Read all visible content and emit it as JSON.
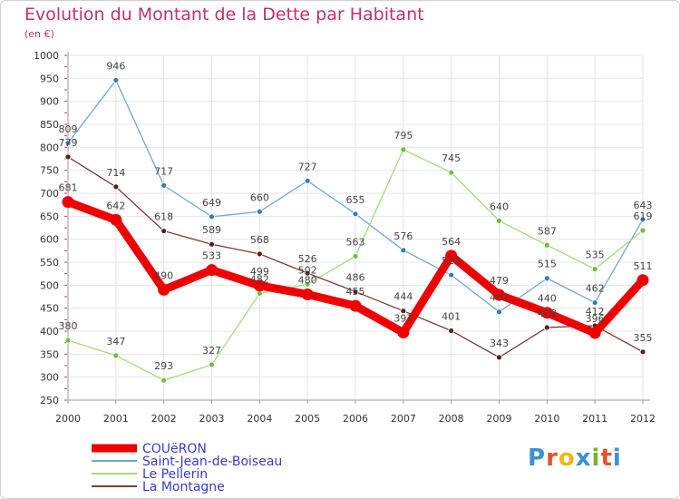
{
  "title": "Evolution du Montant de la Dette par Habitant",
  "subtitle": "(en €)",
  "logo": {
    "text": "Proxiti",
    "colors": [
      "#3b8fd6",
      "#e8502a",
      "#f0b419",
      "#3b8fd6",
      "#79b42a",
      "#e8502a",
      "#3b8fd6"
    ]
  },
  "chart_data": {
    "type": "line",
    "categories": [
      "2000",
      "2001",
      "2002",
      "2003",
      "2004",
      "2005",
      "2006",
      "2007",
      "2008",
      "2009",
      "2010",
      "2011",
      "2012"
    ],
    "ylim": [
      250,
      1000
    ],
    "yticks": [
      250,
      300,
      350,
      400,
      450,
      500,
      550,
      600,
      650,
      700,
      750,
      800,
      850,
      900,
      950,
      1000
    ],
    "grid": true,
    "legend_position": "bottom-left",
    "series": [
      {
        "name": "Saint-Jean-de-Boiseau",
        "color": "#6ea8d8",
        "point_color": "#2e7fc0",
        "values": [
          809,
          946,
          717,
          649,
          660,
          727,
          655,
          576,
          522,
          442,
          515,
          462,
          643
        ]
      },
      {
        "name": "Le Pellerin",
        "color": "#a3dc7a",
        "point_color": "#6cc23a",
        "values": [
          380,
          347,
          293,
          327,
          482,
          502,
          563,
          795,
          745,
          640,
          587,
          535,
          619
        ]
      },
      {
        "name": "La Montagne",
        "color": "#7a3b3b",
        "point_color": "#5a1f1f",
        "values": [
          779,
          714,
          618,
          589,
          568,
          526,
          486,
          444,
          401,
          343,
          408,
          412,
          355
        ]
      },
      {
        "name": "COUëRON",
        "color": "#ee0000",
        "point_color": "#ee0000",
        "values": [
          681,
          642,
          490,
          533,
          499,
          480,
          455,
          397,
          564,
          479,
          440,
          396,
          511
        ]
      }
    ],
    "legend": [
      "COUëRON",
      "Saint-Jean-de-Boiseau",
      "Le Pellerin",
      "La Montagne"
    ]
  }
}
